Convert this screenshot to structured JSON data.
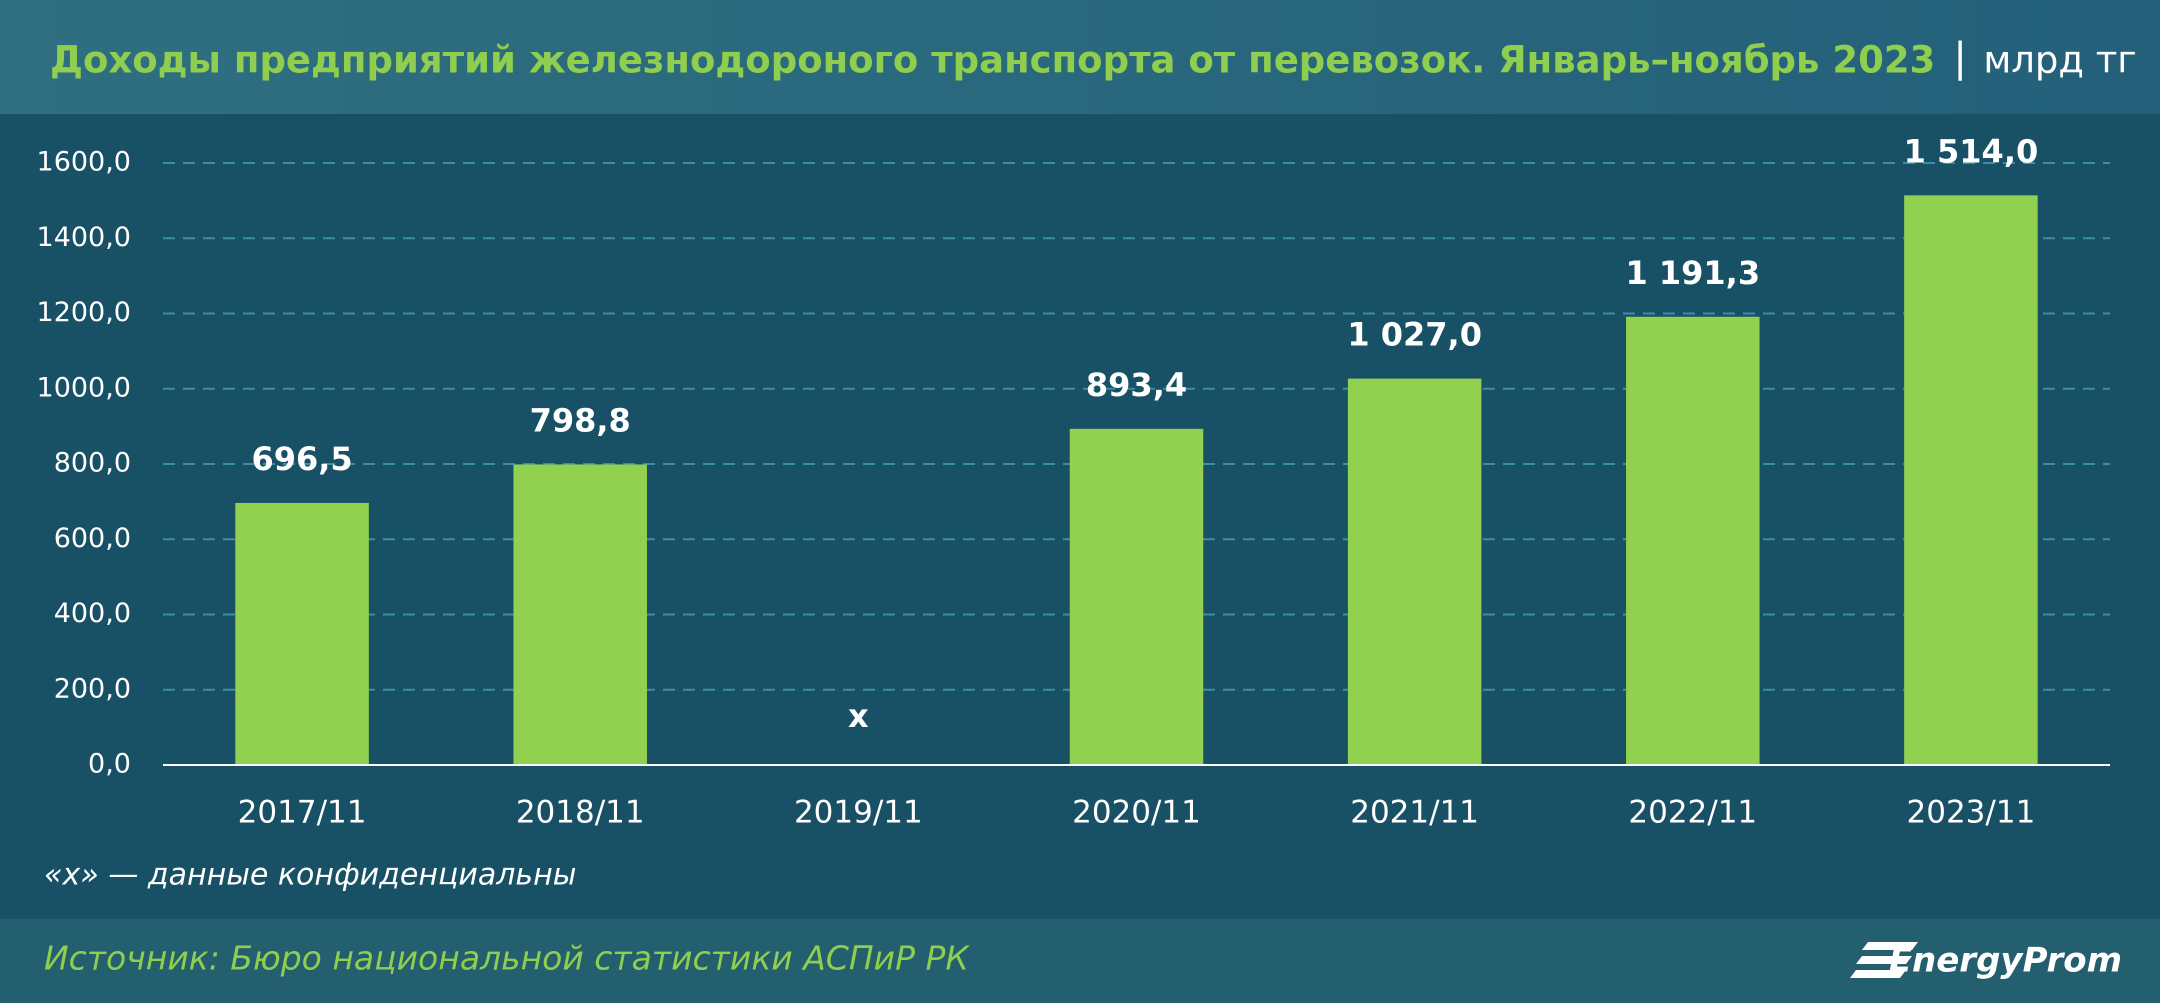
{
  "chart_data": {
    "type": "bar",
    "title": "Доходы предприятий железнодороного транспорта от перевозок. Январь–ноябрь 2023",
    "unit": "млрд тг",
    "categories": [
      "2017/11",
      "2018/11",
      "2019/11",
      "2020/11",
      "2021/11",
      "2022/11",
      "2023/11"
    ],
    "values": [
      696.5,
      798.8,
      null,
      893.4,
      1027.0,
      1191.3,
      1514.0
    ],
    "value_labels": [
      "696,5",
      "798,8",
      "x",
      "893,4",
      "1 027,0",
      "1 191,3",
      "1 514,0"
    ],
    "color": "#92d050",
    "ylim": [
      0,
      1600
    ],
    "yticks": [
      {
        "value": 0,
        "label": "0,0"
      },
      {
        "value": 200,
        "label": "200,0"
      },
      {
        "value": 400,
        "label": "400,0"
      },
      {
        "value": 600,
        "label": "600,0"
      },
      {
        "value": 800,
        "label": "800,0"
      },
      {
        "value": 1000,
        "label": "1000,0"
      },
      {
        "value": 1200,
        "label": "1200,0"
      },
      {
        "value": 1400,
        "label": "1400,0"
      },
      {
        "value": 1600,
        "label": "1600,0"
      }
    ],
    "grid": true,
    "note": "«x» — данные конфиденциальны",
    "source": "Источник: Бюро национальной статистики АСПиР РК",
    "brand": "EnergyProm"
  }
}
